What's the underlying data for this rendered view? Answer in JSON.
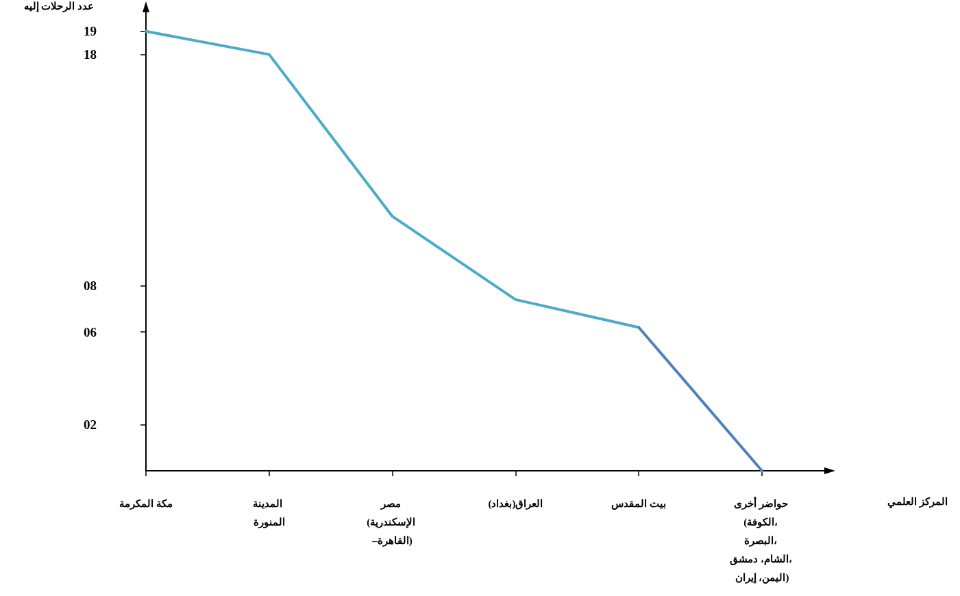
{
  "chart_data": {
    "type": "line",
    "annotations": [
      "المركز العلمي"
    ],
    "ylabel": "عدد الرحلات إليه",
    "categories": [
      "مكة المكرمة",
      "المدينة المنورة",
      "مصر (الإسكندرية –القاهرة)",
      "العراق(بغداد)",
      "بيت المقدس",
      "حواضر أخرى (الكوفة، البصرة، الشام، دمشق، اليمن، إيران)"
    ],
    "ylim": [
      0,
      20
    ],
    "yticks": [
      {
        "value": 2,
        "label": "02"
      },
      {
        "value": 6,
        "label": "06"
      },
      {
        "value": 8,
        "label": "08"
      },
      18,
      19
    ],
    "series": [
      {
        "color": "#4bacc6",
        "values": [
          19,
          18,
          11,
          7.4,
          6.2,
          null
        ]
      },
      {
        "color": "#4f81bd",
        "values": [
          null,
          null,
          null,
          null,
          6.2,
          0
        ]
      }
    ],
    "grid": false,
    "marker": "none",
    "line_style": "solid"
  }
}
